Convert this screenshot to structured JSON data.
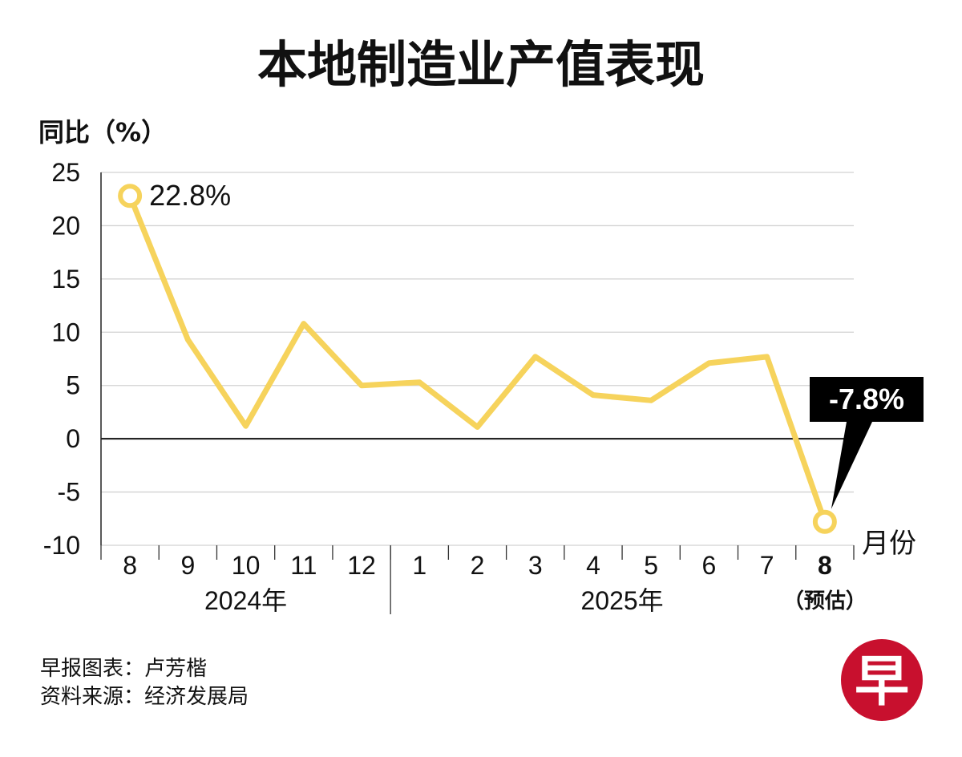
{
  "chart_data": {
    "type": "line",
    "title": "本地制造业产值表现",
    "ylabel": "同比（%）",
    "xlabel": "月份",
    "ylim": [
      -10,
      25
    ],
    "yticks": [
      25,
      20,
      15,
      10,
      5,
      0,
      -5,
      -10
    ],
    "grid": true,
    "categories": [
      "8",
      "9",
      "10",
      "11",
      "12",
      "1",
      "2",
      "3",
      "4",
      "5",
      "6",
      "7",
      "8"
    ],
    "groups": [
      {
        "label": "2024年",
        "count": 5
      },
      {
        "label": "2025年",
        "count": 8
      }
    ],
    "last_category_note": "（预估）",
    "series": [
      {
        "name": "同比",
        "color": "#f6d35c",
        "values": [
          22.8,
          9.3,
          1.2,
          10.8,
          5.0,
          5.3,
          1.1,
          7.7,
          4.1,
          3.6,
          7.1,
          7.7,
          -7.8
        ]
      }
    ],
    "annotations": [
      {
        "index": 0,
        "text": "22.8%",
        "style": "plain"
      },
      {
        "index": 12,
        "text": "-7.8%",
        "style": "callout"
      }
    ]
  },
  "footer": {
    "credit_line1": "早报图表：卢芳楷",
    "credit_line2": "资料来源：经济发展局"
  },
  "logo": {
    "text": "早",
    "color": "#c8102e"
  }
}
